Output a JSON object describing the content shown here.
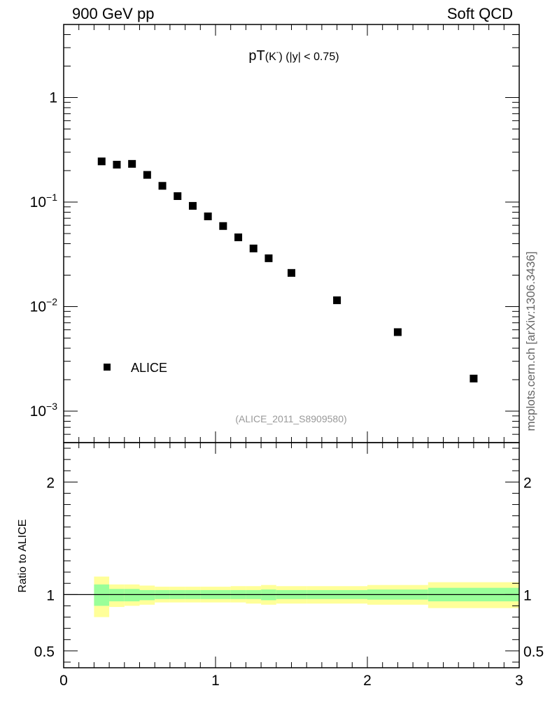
{
  "header": {
    "left": "900 GeV pp",
    "right": "Soft QCD"
  },
  "side_label": "mcplots.cern.ch [arXiv:1306.3436]",
  "chart_data": {
    "type": "scatter",
    "title_main": "pT",
    "title_paren": "(K",
    "title_sup": "-",
    "title_close": ")",
    "title_cut": " (|y| < 0.75)",
    "source_label": "(ALICE_2011_S8909580)",
    "x_range": [
      0,
      3
    ],
    "x_ticks": [
      "0",
      "1",
      "2",
      "3"
    ],
    "y_scale": "log",
    "y_range": [
      0.0005,
      5
    ],
    "y_ticks": [
      {
        "value": 1,
        "label": "1",
        "exp": ""
      },
      {
        "value": 0.1,
        "label": "10",
        "exp": "−1"
      },
      {
        "value": 0.01,
        "label": "10",
        "exp": "−2"
      },
      {
        "value": 0.001,
        "label": "10",
        "exp": "−3"
      }
    ],
    "series": [
      {
        "name": "ALICE",
        "color": "#000000",
        "x": [
          0.25,
          0.35,
          0.45,
          0.55,
          0.65,
          0.75,
          0.85,
          0.95,
          1.05,
          1.15,
          1.25,
          1.35,
          1.5,
          1.8,
          2.2,
          2.7
        ],
        "y": [
          0.245,
          0.228,
          0.232,
          0.182,
          0.143,
          0.114,
          0.092,
          0.073,
          0.059,
          0.046,
          0.036,
          0.029,
          0.021,
          0.0115,
          0.0057,
          0.00205
        ]
      }
    ],
    "legend": {
      "label": "ALICE",
      "placement": "bottom-left"
    },
    "ratio_panel": {
      "ylabel": "Ratio to ALICE",
      "y_range": [
        0.35,
        2.35
      ],
      "y_ticks": [
        "0.5",
        "1",
        "2"
      ],
      "reference_line": 1,
      "bins": [
        {
          "x0": 0.2,
          "x1": 0.3,
          "inner": [
            0.9,
            1.09
          ],
          "outer": [
            0.8,
            1.16
          ]
        },
        {
          "x0": 0.3,
          "x1": 0.4,
          "inner": [
            0.94,
            1.05
          ],
          "outer": [
            0.89,
            1.09
          ]
        },
        {
          "x0": 0.4,
          "x1": 0.5,
          "inner": [
            0.94,
            1.05
          ],
          "outer": [
            0.9,
            1.09
          ]
        },
        {
          "x0": 0.5,
          "x1": 0.6,
          "inner": [
            0.95,
            1.04
          ],
          "outer": [
            0.91,
            1.08
          ]
        },
        {
          "x0": 0.6,
          "x1": 0.7,
          "inner": [
            0.96,
            1.04
          ],
          "outer": [
            0.93,
            1.07
          ]
        },
        {
          "x0": 0.7,
          "x1": 0.8,
          "inner": [
            0.96,
            1.04
          ],
          "outer": [
            0.93,
            1.07
          ]
        },
        {
          "x0": 0.8,
          "x1": 0.9,
          "inner": [
            0.96,
            1.04
          ],
          "outer": [
            0.93,
            1.07
          ]
        },
        {
          "x0": 0.9,
          "x1": 1.0,
          "inner": [
            0.96,
            1.04
          ],
          "outer": [
            0.93,
            1.07
          ]
        },
        {
          "x0": 1.0,
          "x1": 1.1,
          "inner": [
            0.96,
            1.04
          ],
          "outer": [
            0.93,
            1.07
          ]
        },
        {
          "x0": 1.1,
          "x1": 1.2,
          "inner": [
            0.96,
            1.04
          ],
          "outer": [
            0.93,
            1.075
          ]
        },
        {
          "x0": 1.2,
          "x1": 1.3,
          "inner": [
            0.96,
            1.04
          ],
          "outer": [
            0.92,
            1.075
          ]
        },
        {
          "x0": 1.3,
          "x1": 1.4,
          "inner": [
            0.95,
            1.045
          ],
          "outer": [
            0.91,
            1.085
          ]
        },
        {
          "x0": 1.4,
          "x1": 1.6,
          "inner": [
            0.96,
            1.04
          ],
          "outer": [
            0.92,
            1.075
          ]
        },
        {
          "x0": 1.6,
          "x1": 2.0,
          "inner": [
            0.96,
            1.04
          ],
          "outer": [
            0.92,
            1.075
          ]
        },
        {
          "x0": 2.0,
          "x1": 2.4,
          "inner": [
            0.955,
            1.045
          ],
          "outer": [
            0.91,
            1.085
          ]
        },
        {
          "x0": 2.4,
          "x1": 3.0,
          "inner": [
            0.94,
            1.06
          ],
          "outer": [
            0.88,
            1.11
          ]
        }
      ],
      "band_colors": {
        "inner": "#99ff99",
        "outer": "#ffff99"
      }
    }
  }
}
